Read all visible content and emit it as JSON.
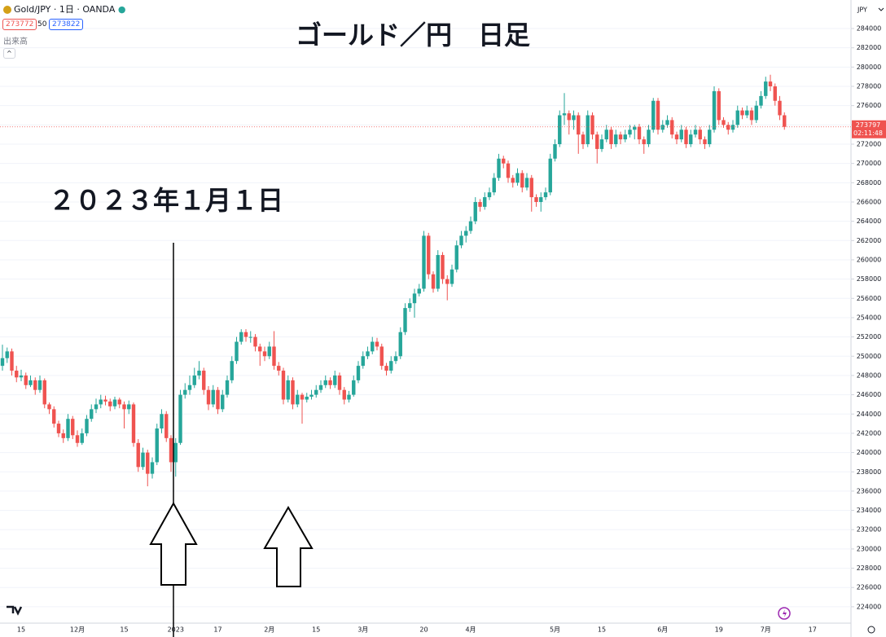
{
  "header": {
    "symbol": "Gold/JPY · 1日 · OANDA",
    "sell": "273772",
    "spread": "50",
    "buy": "273822",
    "volume": "出来高"
  },
  "chart_data": {
    "type": "candlestick",
    "title": "ゴールド／円　日足",
    "annotation": "２０２３年１月１日",
    "currency": "JPY",
    "countdown": "02:11:48",
    "last_price": 273797,
    "up_color": "#26a69a",
    "down_color": "#ef5350",
    "ylim": [
      222300,
      286960
    ],
    "yticks": [
      224000,
      226000,
      228000,
      230000,
      232000,
      234000,
      236000,
      238000,
      240000,
      242000,
      244000,
      246000,
      248000,
      250000,
      252000,
      254000,
      256000,
      258000,
      260000,
      262000,
      264000,
      266000,
      268000,
      270000,
      272000,
      274000,
      276000,
      278000,
      280000,
      282000,
      284000
    ],
    "grid": true,
    "categories": [
      null,
      null,
      null,
      null,
      "15",
      null,
      null,
      null,
      null,
      null,
      null,
      null,
      null,
      null,
      null,
      null,
      "12月",
      null,
      null,
      null,
      null,
      null,
      null,
      null,
      null,
      null,
      "15",
      null,
      null,
      null,
      null,
      null,
      null,
      null,
      null,
      null,
      null,
      "2023",
      null,
      null,
      null,
      null,
      null,
      null,
      null,
      null,
      "17",
      null,
      null,
      null,
      null,
      null,
      null,
      null,
      null,
      null,
      null,
      "2月",
      null,
      null,
      null,
      null,
      null,
      null,
      null,
      null,
      null,
      "15",
      null,
      null,
      null,
      null,
      null,
      null,
      null,
      null,
      null,
      "3月",
      null,
      null,
      null,
      null,
      null,
      null,
      null,
      null,
      null,
      null,
      null,
      null,
      "20",
      null,
      null,
      null,
      null,
      null,
      null,
      null,
      null,
      null,
      "4月",
      null,
      null,
      null,
      null,
      null,
      null,
      null,
      null,
      null,
      null,
      null,
      null,
      null,
      null,
      null,
      null,
      null,
      "5月",
      null,
      null,
      null,
      null,
      null,
      null,
      null,
      null,
      null,
      "15",
      null,
      null,
      null,
      null,
      null,
      null,
      null,
      null,
      null,
      null,
      null,
      null,
      "6月",
      null,
      null,
      null,
      null,
      null,
      null,
      null,
      null,
      null,
      null,
      null,
      "19",
      null,
      null,
      null,
      null,
      null,
      null,
      null,
      null,
      null,
      "7月",
      null,
      null,
      null,
      null,
      null,
      null,
      null,
      null,
      null,
      "17",
      null,
      null,
      null,
      null,
      null,
      null
    ],
    "ohlc": [
      [
        249000,
        251200,
        248500,
        249800
      ],
      [
        249800,
        250900,
        249300,
        250500
      ],
      [
        250500,
        250800,
        248000,
        248500
      ],
      [
        248500,
        249000,
        247300,
        247800
      ],
      [
        247800,
        248600,
        247400,
        248000
      ],
      [
        248000,
        248300,
        246600,
        247000
      ],
      [
        247000,
        248000,
        246800,
        247500
      ],
      [
        247500,
        247800,
        246000,
        246500
      ],
      [
        246500,
        248000,
        246200,
        247500
      ],
      [
        247500,
        247700,
        244600,
        245000
      ],
      [
        245000,
        245200,
        244000,
        244500
      ],
      [
        244500,
        244800,
        242600,
        243000
      ],
      [
        243000,
        243300,
        241600,
        242000
      ],
      [
        242000,
        242400,
        241000,
        241500
      ],
      [
        241500,
        244000,
        241200,
        243500
      ],
      [
        243500,
        243800,
        241400,
        241800
      ],
      [
        241800,
        242300,
        240600,
        241000
      ],
      [
        241000,
        242500,
        240800,
        242000
      ],
      [
        242000,
        243900,
        241700,
        243500
      ],
      [
        243500,
        245000,
        243200,
        244500
      ],
      [
        244500,
        245600,
        244100,
        245000
      ],
      [
        245000,
        246000,
        244600,
        245500
      ],
      [
        245500,
        245900,
        244900,
        245300
      ],
      [
        245300,
        245600,
        244300,
        244800
      ],
      [
        244800,
        245800,
        244500,
        245500
      ],
      [
        245500,
        245700,
        244600,
        245000
      ],
      [
        245000,
        245300,
        242500,
        244500
      ],
      [
        244500,
        245400,
        244000,
        245000
      ],
      [
        245000,
        245200,
        240600,
        241000
      ],
      [
        241000,
        241400,
        238000,
        238500
      ],
      [
        238500,
        240500,
        238200,
        240000
      ],
      [
        240000,
        240300,
        236500,
        237800
      ],
      [
        237800,
        239500,
        237300,
        239000
      ],
      [
        239000,
        243000,
        238700,
        242500
      ],
      [
        242500,
        244500,
        242000,
        244000
      ],
      [
        244000,
        244300,
        241100,
        241500
      ],
      [
        241500,
        241800,
        238000,
        239000
      ],
      [
        239000,
        241500,
        237500,
        241000
      ],
      [
        241000,
        246500,
        240800,
        246000
      ],
      [
        246000,
        247200,
        245600,
        246500
      ],
      [
        246500,
        248000,
        246000,
        247000
      ],
      [
        247000,
        248800,
        246700,
        248000
      ],
      [
        248000,
        249500,
        247600,
        248500
      ],
      [
        248500,
        248800,
        246000,
        246500
      ],
      [
        246500,
        246900,
        244400,
        245000
      ],
      [
        245000,
        247000,
        244700,
        246500
      ],
      [
        246500,
        246800,
        244000,
        244500
      ],
      [
        244500,
        246500,
        244200,
        246000
      ],
      [
        246000,
        248000,
        245700,
        247500
      ],
      [
        247500,
        250000,
        247200,
        249500
      ],
      [
        249500,
        252000,
        249200,
        251500
      ],
      [
        251500,
        252800,
        251200,
        252500
      ],
      [
        252500,
        252800,
        251500,
        252000
      ],
      [
        252000,
        252600,
        251400,
        252000
      ],
      [
        252000,
        252300,
        250500,
        251000
      ],
      [
        251000,
        251300,
        249000,
        250500
      ],
      [
        250500,
        251000,
        249500,
        250000
      ],
      [
        250000,
        251500,
        249700,
        251000
      ],
      [
        251000,
        252600,
        248600,
        249000
      ],
      [
        249000,
        249400,
        248000,
        248500
      ],
      [
        248500,
        248800,
        245000,
        245500
      ],
      [
        245500,
        248000,
        245200,
        247500
      ],
      [
        247500,
        247800,
        244500,
        245000
      ],
      [
        245000,
        246500,
        244700,
        246000
      ],
      [
        246000,
        246200,
        243000,
        245500
      ],
      [
        245500,
        246200,
        245200,
        245800
      ],
      [
        245800,
        246500,
        245500,
        246000
      ],
      [
        246000,
        247000,
        245700,
        246500
      ],
      [
        246500,
        247500,
        246200,
        247000
      ],
      [
        247000,
        248000,
        246700,
        247500
      ],
      [
        247500,
        247800,
        246600,
        247000
      ],
      [
        247000,
        248500,
        246700,
        248000
      ],
      [
        248000,
        248300,
        246000,
        246500
      ],
      [
        246500,
        246800,
        245000,
        245500
      ],
      [
        245500,
        246400,
        245200,
        246000
      ],
      [
        246000,
        248000,
        245800,
        247500
      ],
      [
        247500,
        249500,
        247200,
        249000
      ],
      [
        249000,
        250500,
        248700,
        250000
      ],
      [
        250000,
        251000,
        249700,
        250500
      ],
      [
        250500,
        252000,
        250200,
        251500
      ],
      [
        251500,
        251900,
        250600,
        251000
      ],
      [
        251000,
        251300,
        248600,
        249000
      ],
      [
        249000,
        249300,
        248000,
        248500
      ],
      [
        248500,
        250000,
        248200,
        249500
      ],
      [
        249500,
        250500,
        249200,
        250000
      ],
      [
        250000,
        253000,
        249700,
        252500
      ],
      [
        252500,
        255500,
        252200,
        255000
      ],
      [
        255000,
        256000,
        254600,
        255500
      ],
      [
        255500,
        257000,
        254000,
        256500
      ],
      [
        256500,
        257500,
        256200,
        257000
      ],
      [
        257000,
        263000,
        256700,
        262500
      ],
      [
        262500,
        262800,
        258000,
        258500
      ],
      [
        258500,
        258800,
        256600,
        257000
      ],
      [
        257000,
        261000,
        256700,
        260500
      ],
      [
        260500,
        260800,
        257500,
        258000
      ],
      [
        258000,
        258400,
        255800,
        257500
      ],
      [
        257500,
        259500,
        257200,
        259000
      ],
      [
        259000,
        262000,
        258700,
        261500
      ],
      [
        261500,
        263000,
        261200,
        262500
      ],
      [
        262500,
        263500,
        261800,
        263000
      ],
      [
        263000,
        264500,
        262700,
        264000
      ],
      [
        264000,
        266500,
        263700,
        266000
      ],
      [
        266000,
        266300,
        265000,
        265500
      ],
      [
        265500,
        267000,
        265200,
        266500
      ],
      [
        266500,
        267500,
        266200,
        267000
      ],
      [
        267000,
        269000,
        266700,
        268500
      ],
      [
        268500,
        271000,
        268200,
        270500
      ],
      [
        270500,
        270800,
        269500,
        270000
      ],
      [
        270000,
        270300,
        268000,
        268500
      ],
      [
        268500,
        268800,
        267500,
        268000
      ],
      [
        268000,
        269500,
        267700,
        269000
      ],
      [
        269000,
        269300,
        267000,
        267500
      ],
      [
        267500,
        269000,
        267200,
        268500
      ],
      [
        268500,
        268800,
        265000,
        266500
      ],
      [
        266500,
        266800,
        265500,
        266000
      ],
      [
        266000,
        267000,
        265000,
        266500
      ],
      [
        266500,
        267500,
        266200,
        267000
      ],
      [
        267000,
        271000,
        266700,
        270500
      ],
      [
        270500,
        272500,
        270200,
        272000
      ],
      [
        272000,
        275500,
        271700,
        275000
      ],
      [
        275000,
        277300,
        274000,
        275200
      ],
      [
        275200,
        275500,
        273000,
        274500
      ],
      [
        274500,
        275500,
        273500,
        275000
      ],
      [
        275000,
        275300,
        271000,
        273000
      ],
      [
        273000,
        273300,
        271500,
        272000
      ],
      [
        272000,
        275500,
        271700,
        275000
      ],
      [
        275000,
        275300,
        272500,
        273000
      ],
      [
        273000,
        273300,
        270000,
        271500
      ],
      [
        271500,
        273000,
        271200,
        272500
      ],
      [
        272500,
        274000,
        272200,
        273500
      ],
      [
        273500,
        273800,
        271500,
        272000
      ],
      [
        272000,
        273500,
        271700,
        273000
      ],
      [
        273000,
        273300,
        272000,
        272500
      ],
      [
        272500,
        273500,
        272200,
        273000
      ],
      [
        273000,
        274000,
        272700,
        273500
      ],
      [
        273500,
        274000,
        272500,
        273800
      ],
      [
        273800,
        274100,
        272000,
        272500
      ],
      [
        272500,
        272800,
        271000,
        272000
      ],
      [
        272000,
        274000,
        271700,
        273500
      ],
      [
        273500,
        276800,
        273200,
        276500
      ],
      [
        276500,
        276800,
        273000,
        273500
      ],
      [
        273500,
        274500,
        273200,
        274000
      ],
      [
        274000,
        275000,
        273700,
        274500
      ],
      [
        274500,
        274800,
        272600,
        273000
      ],
      [
        273000,
        273300,
        272000,
        272500
      ],
      [
        272500,
        274000,
        272200,
        273500
      ],
      [
        273500,
        273800,
        271600,
        272000
      ],
      [
        272000,
        273500,
        271700,
        273000
      ],
      [
        273000,
        274000,
        272700,
        273500
      ],
      [
        273500,
        273800,
        272000,
        272500
      ],
      [
        272500,
        272800,
        271500,
        272000
      ],
      [
        272000,
        274000,
        271700,
        273500
      ],
      [
        273500,
        278000,
        273200,
        277500
      ],
      [
        277500,
        277800,
        274000,
        274500
      ],
      [
        274500,
        274800,
        273700,
        274000
      ],
      [
        274000,
        274300,
        273000,
        273500
      ],
      [
        273500,
        274500,
        273200,
        274000
      ],
      [
        274000,
        276000,
        273700,
        275500
      ],
      [
        275500,
        275800,
        274600,
        275000
      ],
      [
        275000,
        276000,
        274700,
        275500
      ],
      [
        275500,
        275800,
        274000,
        274500
      ],
      [
        274500,
        276500,
        274200,
        276000
      ],
      [
        276000,
        277500,
        275700,
        277000
      ],
      [
        277000,
        279000,
        276700,
        278500
      ],
      [
        278500,
        279200,
        277500,
        278000
      ],
      [
        278000,
        278300,
        276000,
        276500
      ],
      [
        276500,
        277000,
        274500,
        275000
      ],
      [
        275000,
        275300,
        273500,
        273797
      ],
      null,
      null,
      null,
      null,
      null,
      null,
      null,
      null,
      null,
      null,
      null,
      null
    ]
  }
}
